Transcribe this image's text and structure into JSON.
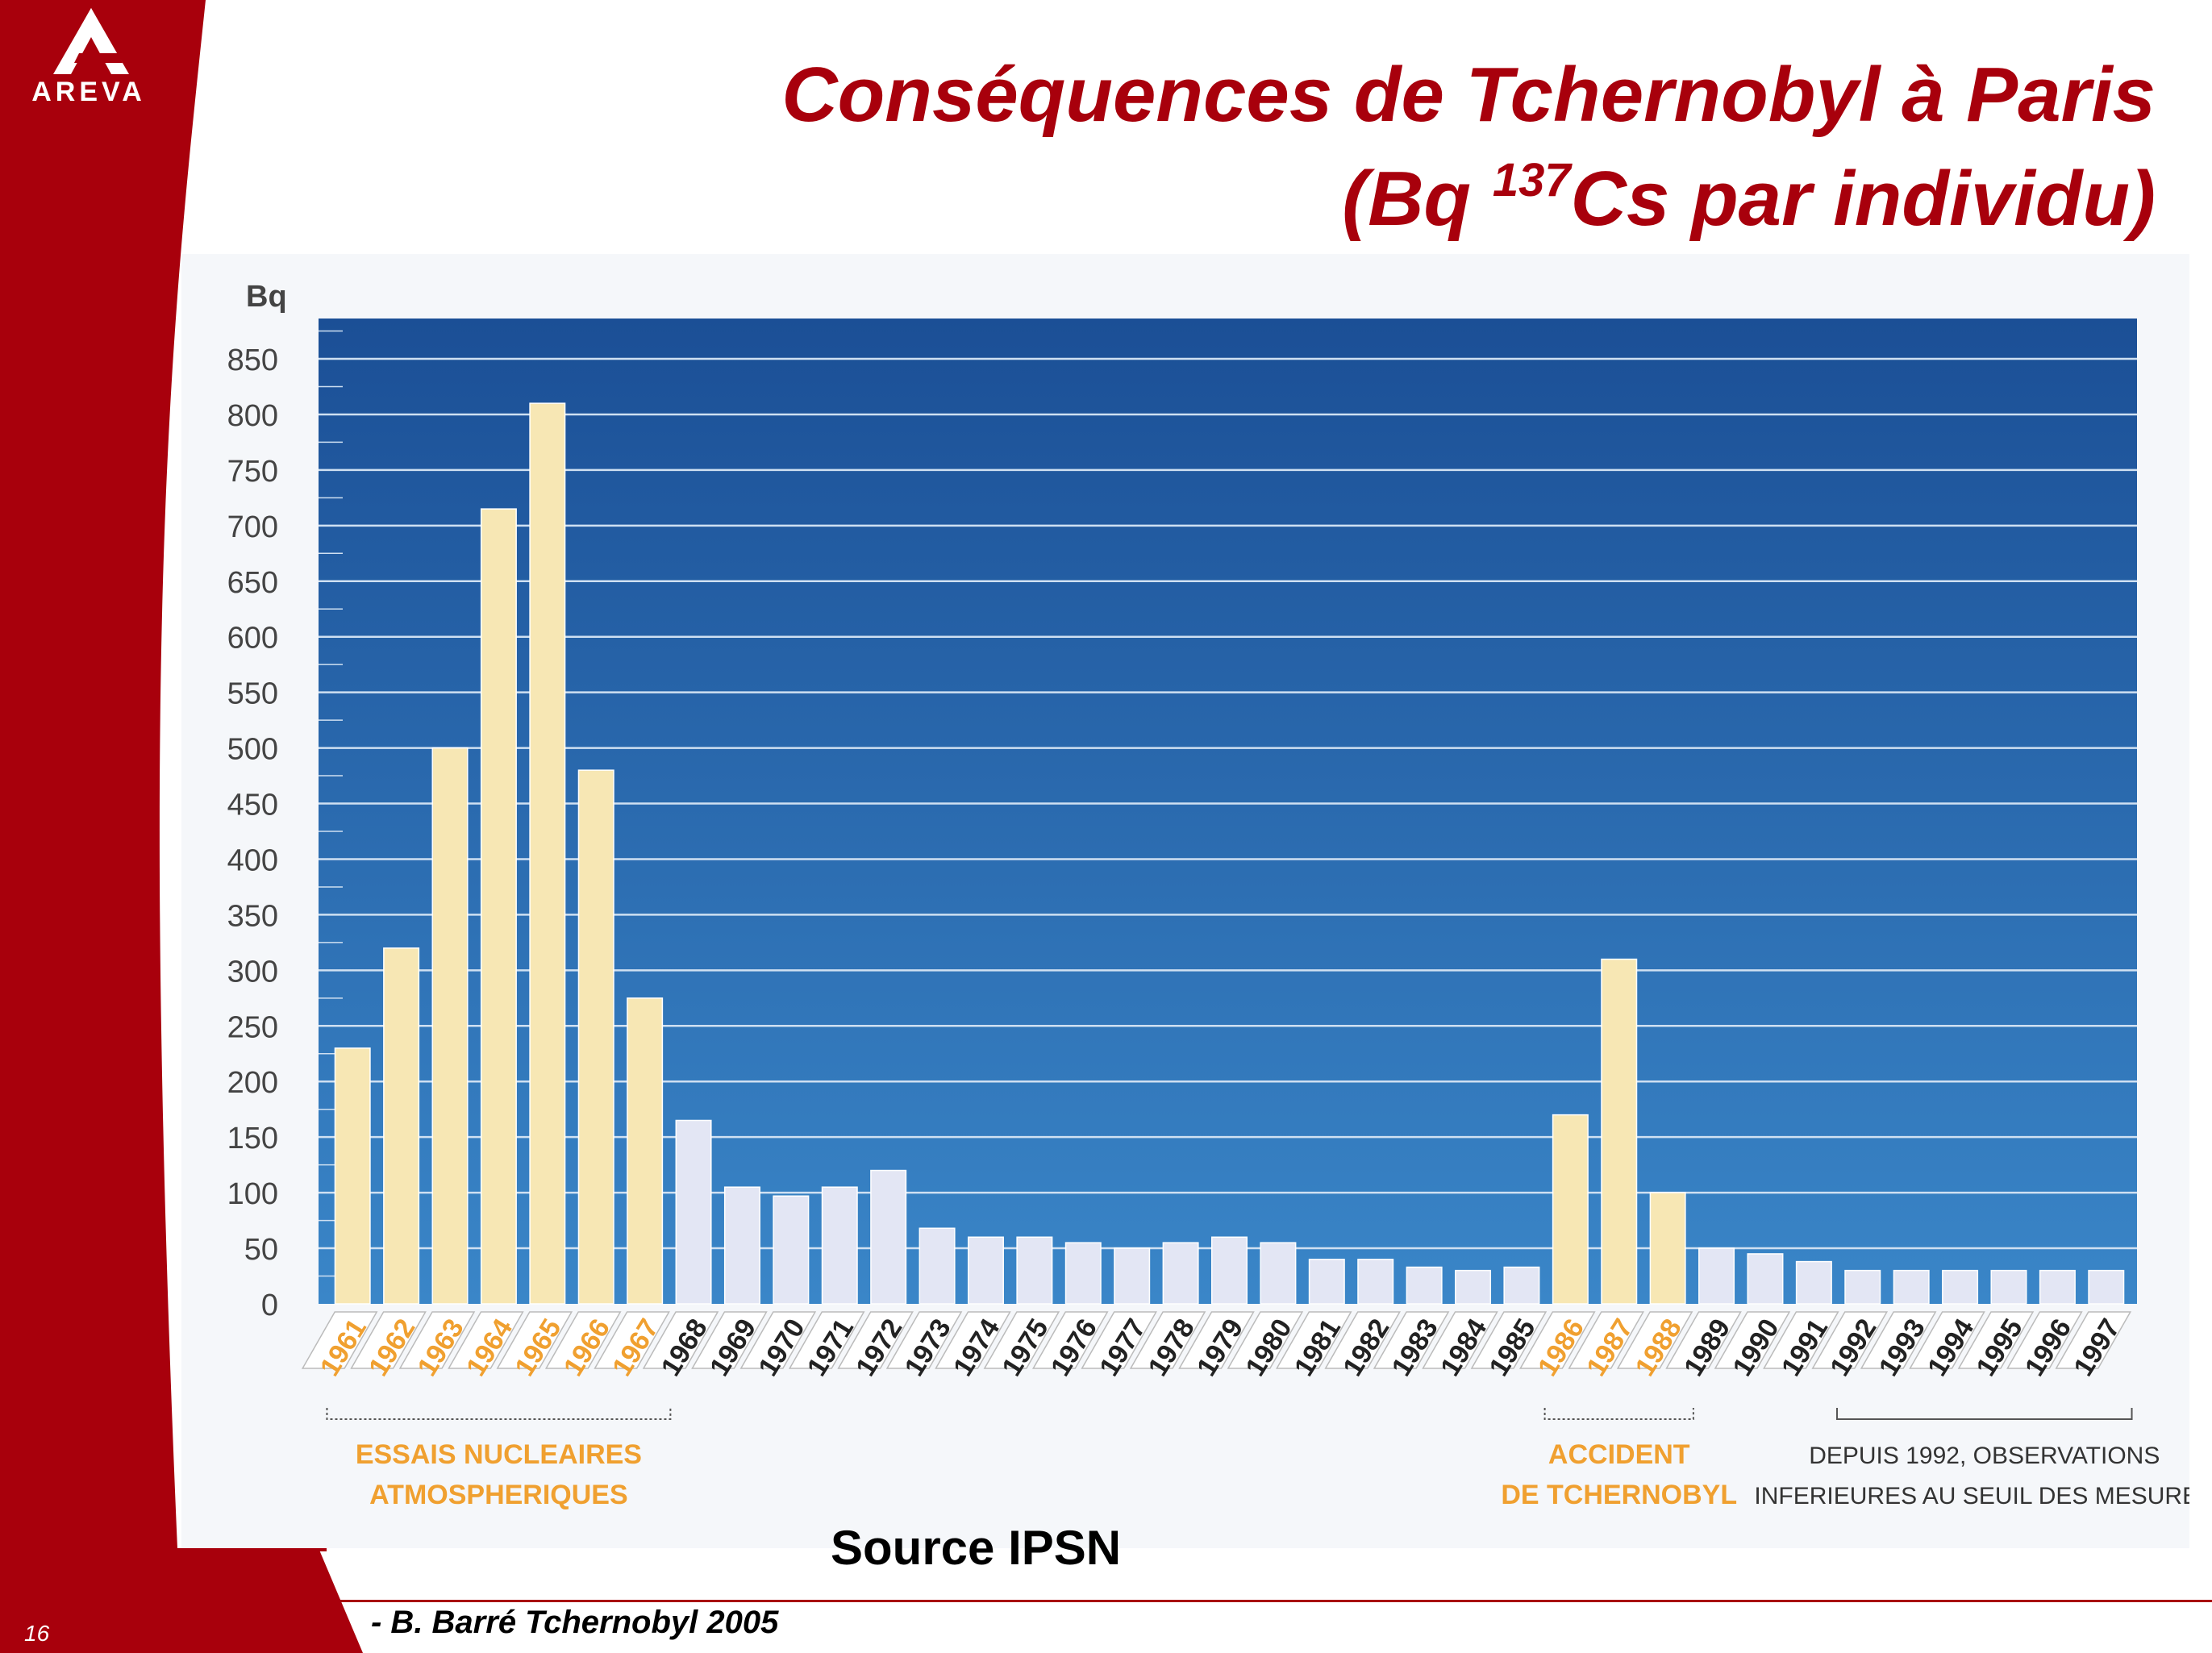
{
  "header": {
    "logo_text": "AREVA",
    "title_line1": "Conséquences de Tchernobyl à Paris",
    "title_line2_pre": "(Bq ",
    "title_line2_sup": "137",
    "title_line2_post": "Cs par individu)"
  },
  "colors": {
    "brand_red": "#a8000c",
    "plot_bg_top": "#1b4f96",
    "plot_bg_bottom": "#3a86c8",
    "bar_highlight": "#f7e7b4",
    "bar_normal": "#e3e6f4",
    "label_orange": "#f0a030",
    "label_dark": "#222222"
  },
  "chart_data": {
    "type": "bar",
    "title": "Conséquences de Tchernobyl à Paris (Bq 137Cs par individu)",
    "ylabel": "Bq",
    "xlabel": "",
    "ylim": [
      0,
      850
    ],
    "yticks": [
      "0",
      "50",
      "100",
      "150",
      "200",
      "250",
      "300",
      "350",
      "400",
      "450",
      "500",
      "550",
      "600",
      "650",
      "700",
      "750",
      "800",
      "850"
    ],
    "grid": true,
    "categories": [
      "1961",
      "1962",
      "1963",
      "1964",
      "1965",
      "1966",
      "1967",
      "1968",
      "1969",
      "1970",
      "1971",
      "1972",
      "1973",
      "1974",
      "1975",
      "1976",
      "1977",
      "1978",
      "1979",
      "1980",
      "1981",
      "1982",
      "1983",
      "1984",
      "1985",
      "1986",
      "1987",
      "1988",
      "1989",
      "1990",
      "1991",
      "1992",
      "1993",
      "1994",
      "1995",
      "1996",
      "1997"
    ],
    "values": [
      230,
      320,
      500,
      715,
      810,
      480,
      275,
      165,
      105,
      97,
      105,
      120,
      68,
      60,
      60,
      55,
      50,
      55,
      60,
      55,
      40,
      40,
      33,
      30,
      33,
      170,
      310,
      100,
      50,
      45,
      38,
      30,
      30,
      30,
      30,
      30,
      30
    ],
    "highlighted_years": [
      "1961",
      "1962",
      "1963",
      "1964",
      "1965",
      "1966",
      "1967",
      "1986",
      "1987",
      "1988"
    ],
    "annotations": [
      {
        "text_line1": "ESSAIS NUCLEAIRES",
        "text_line2": "ATMOSPHERIQUES",
        "from": "1961",
        "to": "1967"
      },
      {
        "text_line1": "ACCIDENT",
        "text_line2": "DE TCHERNOBYL",
        "from": "1986",
        "to": "1988"
      },
      {
        "text_line1": "DEPUIS 1992, OBSERVATIONS",
        "text_line2": "INFERIEURES AU SEUIL DES MESURES",
        "from": "1992",
        "to": "1997"
      }
    ]
  },
  "source": "Source IPSN",
  "footer": {
    "page_number": "16",
    "credit": "- B. Barré Tchernobyl 2005"
  }
}
